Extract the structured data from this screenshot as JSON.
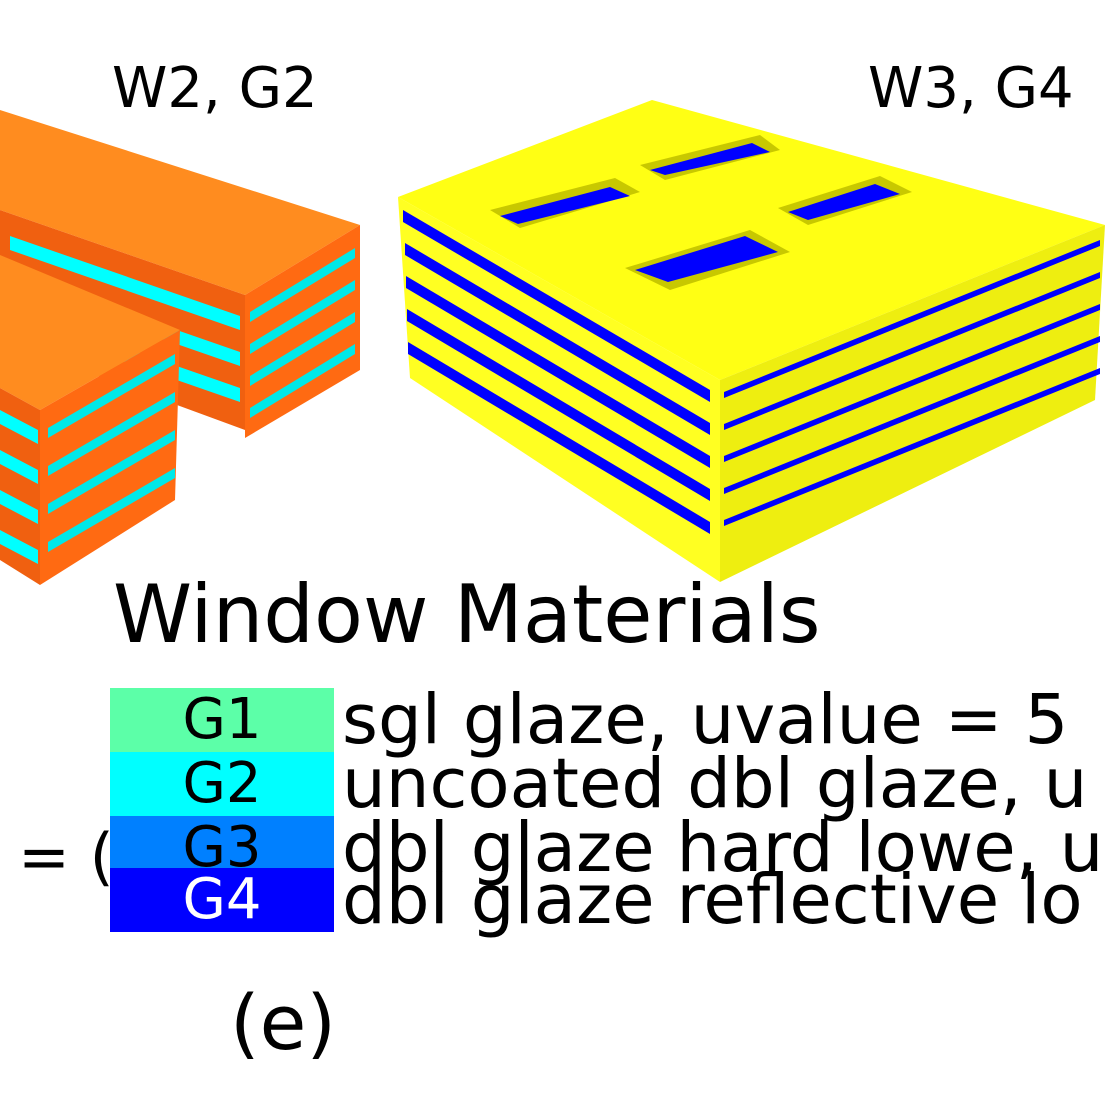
{
  "buildings": [
    {
      "label": "W2, G2",
      "colors": {
        "roof": "#ff8c1f",
        "side_dark": "#f06010",
        "side_light": "#ff7a1a",
        "window": "#00ffff"
      }
    },
    {
      "label": "W3, G4",
      "colors": {
        "roof": "#ffff14",
        "side_dark": "#e6e600",
        "side_light": "#ffff33",
        "window": "#0000ff"
      }
    }
  ],
  "side_fragment": "= (",
  "legend": {
    "title": "Window Materials",
    "items": [
      {
        "code": "G1",
        "color": "#5cffa8",
        "text_color": "#000000",
        "description": "sgl glaze, uvalue = 5"
      },
      {
        "code": "G2",
        "color": "#00ffff",
        "text_color": "#000000",
        "description": "uncoated dbl glaze, u"
      },
      {
        "code": "G3",
        "color": "#0080ff",
        "text_color": "#000000",
        "description": "dbl glaze hard lowe, u"
      },
      {
        "code": "G4",
        "color": "#0000ff",
        "text_color": "#ffffff",
        "description": "dbl glaze reflective lo"
      }
    ]
  },
  "caption": "(e)"
}
